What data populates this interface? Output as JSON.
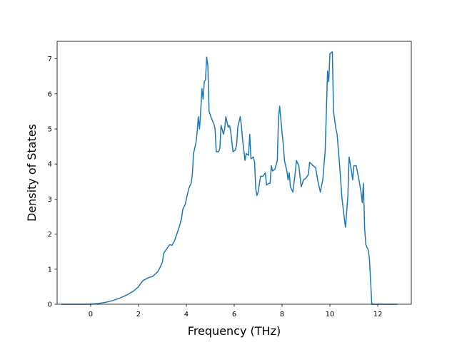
{
  "chart_data": {
    "type": "line",
    "xlabel": "Frequency (THz)",
    "ylabel": "Density of States",
    "xlim": [
      -1.4,
      13.4
    ],
    "ylim": [
      0,
      7.5
    ],
    "xticks": [
      0,
      2,
      4,
      6,
      8,
      10,
      12
    ],
    "yticks": [
      0,
      1,
      2,
      3,
      4,
      5,
      6,
      7
    ],
    "grid": false,
    "series": [
      {
        "color": "#1f77b4",
        "points": [
          [
            -1.2,
            0.0
          ],
          [
            -0.5,
            0.0
          ],
          [
            0.0,
            0.0
          ],
          [
            0.3,
            0.02
          ],
          [
            0.6,
            0.05
          ],
          [
            0.9,
            0.1
          ],
          [
            1.2,
            0.17
          ],
          [
            1.5,
            0.26
          ],
          [
            1.8,
            0.38
          ],
          [
            2.0,
            0.5
          ],
          [
            2.1,
            0.6
          ],
          [
            2.2,
            0.68
          ],
          [
            2.4,
            0.75
          ],
          [
            2.6,
            0.8
          ],
          [
            2.8,
            0.92
          ],
          [
            2.9,
            1.05
          ],
          [
            3.0,
            1.2
          ],
          [
            3.05,
            1.45
          ],
          [
            3.2,
            1.6
          ],
          [
            3.3,
            1.7
          ],
          [
            3.4,
            1.68
          ],
          [
            3.5,
            1.8
          ],
          [
            3.6,
            2.0
          ],
          [
            3.7,
            2.2
          ],
          [
            3.8,
            2.45
          ],
          [
            3.85,
            2.7
          ],
          [
            3.95,
            2.85
          ],
          [
            4.0,
            3.0
          ],
          [
            4.1,
            3.3
          ],
          [
            4.2,
            3.45
          ],
          [
            4.25,
            3.7
          ],
          [
            4.3,
            4.3
          ],
          [
            4.4,
            4.6
          ],
          [
            4.45,
            4.9
          ],
          [
            4.5,
            5.35
          ],
          [
            4.55,
            5.0
          ],
          [
            4.6,
            5.5
          ],
          [
            4.65,
            6.15
          ],
          [
            4.7,
            5.85
          ],
          [
            4.75,
            6.35
          ],
          [
            4.8,
            6.4
          ],
          [
            4.85,
            7.05
          ],
          [
            4.9,
            6.8
          ],
          [
            4.95,
            5.5
          ],
          [
            5.05,
            5.3
          ],
          [
            5.15,
            5.15
          ],
          [
            5.2,
            5.0
          ],
          [
            5.25,
            4.35
          ],
          [
            5.35,
            4.35
          ],
          [
            5.4,
            4.45
          ],
          [
            5.45,
            5.1
          ],
          [
            5.55,
            4.85
          ],
          [
            5.6,
            5.0
          ],
          [
            5.65,
            5.35
          ],
          [
            5.75,
            5.05
          ],
          [
            5.8,
            5.1
          ],
          [
            5.85,
            4.95
          ],
          [
            5.95,
            4.35
          ],
          [
            6.05,
            4.4
          ],
          [
            6.1,
            4.55
          ],
          [
            6.15,
            5.05
          ],
          [
            6.25,
            5.35
          ],
          [
            6.3,
            5.1
          ],
          [
            6.35,
            4.7
          ],
          [
            6.45,
            4.1
          ],
          [
            6.5,
            4.3
          ],
          [
            6.6,
            4.25
          ],
          [
            6.65,
            4.85
          ],
          [
            6.7,
            4.15
          ],
          [
            6.8,
            4.2
          ],
          [
            6.85,
            4.05
          ],
          [
            6.9,
            3.3
          ],
          [
            6.95,
            3.1
          ],
          [
            7.0,
            3.2
          ],
          [
            7.1,
            3.65
          ],
          [
            7.2,
            3.65
          ],
          [
            7.3,
            3.75
          ],
          [
            7.35,
            3.4
          ],
          [
            7.45,
            3.45
          ],
          [
            7.5,
            3.45
          ],
          [
            7.55,
            3.95
          ],
          [
            7.6,
            3.8
          ],
          [
            7.7,
            3.85
          ],
          [
            7.8,
            4.1
          ],
          [
            7.85,
            5.3
          ],
          [
            7.9,
            5.65
          ],
          [
            8.0,
            4.9
          ],
          [
            8.05,
            4.55
          ],
          [
            8.1,
            4.1
          ],
          [
            8.2,
            3.8
          ],
          [
            8.25,
            3.55
          ],
          [
            8.3,
            3.75
          ],
          [
            8.35,
            3.35
          ],
          [
            8.45,
            3.2
          ],
          [
            8.55,
            3.75
          ],
          [
            8.6,
            4.1
          ],
          [
            8.7,
            3.95
          ],
          [
            8.8,
            3.35
          ],
          [
            8.9,
            3.55
          ],
          [
            9.0,
            3.6
          ],
          [
            9.1,
            3.7
          ],
          [
            9.15,
            4.05
          ],
          [
            9.3,
            3.95
          ],
          [
            9.4,
            3.9
          ],
          [
            9.5,
            3.5
          ],
          [
            9.6,
            3.2
          ],
          [
            9.7,
            3.55
          ],
          [
            9.8,
            4.35
          ],
          [
            9.85,
            5.5
          ],
          [
            9.9,
            6.65
          ],
          [
            9.95,
            6.35
          ],
          [
            10.0,
            7.15
          ],
          [
            10.1,
            7.2
          ],
          [
            10.15,
            5.5
          ],
          [
            10.25,
            5.0
          ],
          [
            10.3,
            4.85
          ],
          [
            10.4,
            4.0
          ],
          [
            10.5,
            3.05
          ],
          [
            10.6,
            2.45
          ],
          [
            10.65,
            2.2
          ],
          [
            10.75,
            3.1
          ],
          [
            10.8,
            4.2
          ],
          [
            10.9,
            3.8
          ],
          [
            10.95,
            3.55
          ],
          [
            11.0,
            3.95
          ],
          [
            11.1,
            3.95
          ],
          [
            11.2,
            3.6
          ],
          [
            11.3,
            3.2
          ],
          [
            11.35,
            2.9
          ],
          [
            11.4,
            3.45
          ],
          [
            11.45,
            2.15
          ],
          [
            11.5,
            1.7
          ],
          [
            11.6,
            1.55
          ],
          [
            11.65,
            1.3
          ],
          [
            11.75,
            0.0
          ],
          [
            12.0,
            0.0
          ],
          [
            12.5,
            0.0
          ],
          [
            12.8,
            0.0
          ]
        ]
      }
    ]
  }
}
